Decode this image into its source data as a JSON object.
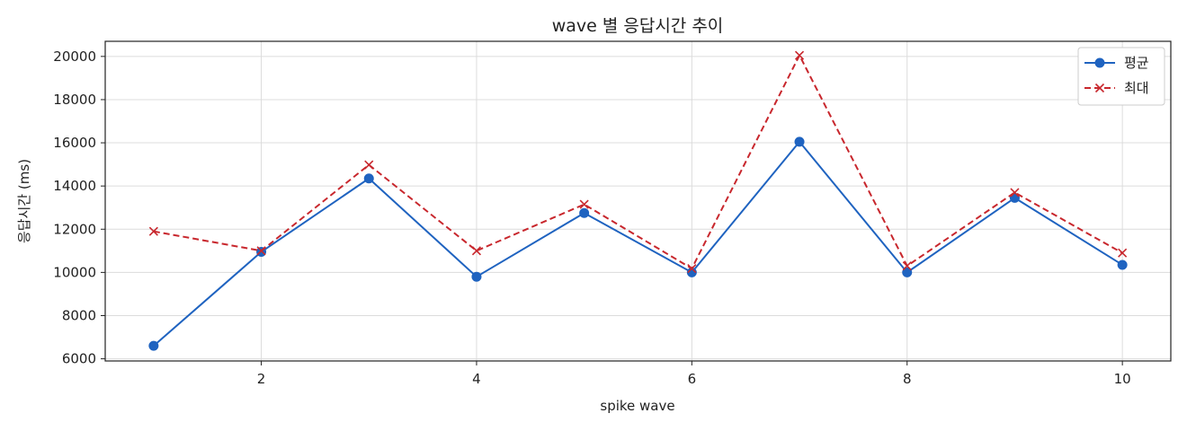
{
  "chart_data": {
    "type": "line",
    "title": "wave 별 응답시간 추이",
    "xlabel": "spike wave",
    "ylabel": "응답시간 (ms)",
    "x": [
      1,
      2,
      3,
      4,
      5,
      6,
      7,
      8,
      9,
      10
    ],
    "xlim": [
      0.55,
      10.45
    ],
    "ylim": [
      5900,
      20700
    ],
    "xticks": [
      2,
      4,
      6,
      8,
      10
    ],
    "yticks": [
      6000,
      8000,
      10000,
      12000,
      14000,
      16000,
      18000,
      20000
    ],
    "grid": true,
    "legend_position": "top-right",
    "series": [
      {
        "name": "평균",
        "values": [
          6600,
          10950,
          14350,
          9800,
          12750,
          10000,
          16050,
          10000,
          13450,
          10350
        ],
        "color": "#1f63c0",
        "style": "solid",
        "marker": "circle"
      },
      {
        "name": "최대",
        "values": [
          11900,
          11000,
          14980,
          11000,
          13150,
          10180,
          20050,
          10300,
          13700,
          10900
        ],
        "color": "#c8272d",
        "style": "dashed",
        "marker": "x"
      }
    ]
  }
}
